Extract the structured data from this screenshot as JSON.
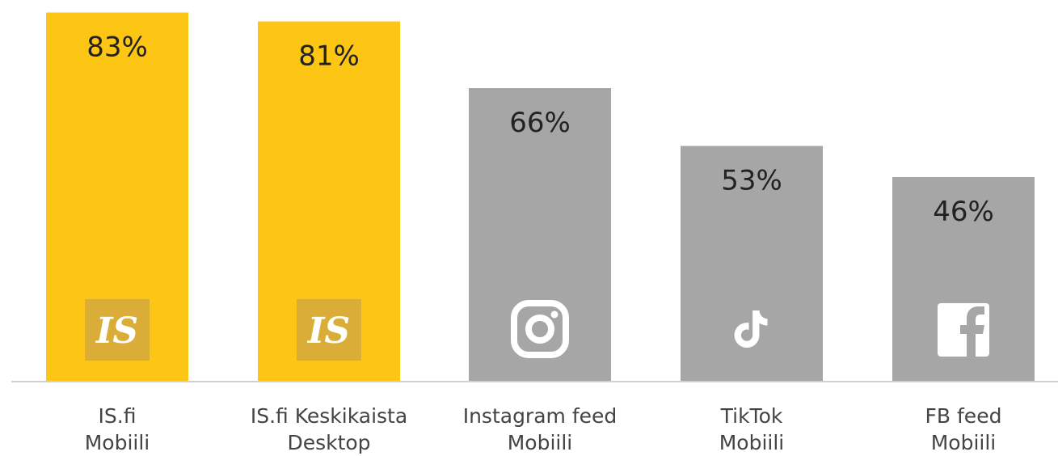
{
  "chart_data": {
    "type": "bar",
    "categories": [
      {
        "line1": "IS.fi",
        "line2": "Mobiili"
      },
      {
        "line1": "IS.fi Keskikaista",
        "line2": "Desktop"
      },
      {
        "line1": "Instagram feed",
        "line2": "Mobiili"
      },
      {
        "line1": "TikTok",
        "line2": "Mobiili"
      },
      {
        "line1": "FB feed",
        "line2": "Mobiili"
      }
    ],
    "values": [
      83,
      81,
      66,
      53,
      46
    ],
    "value_labels": [
      "83%",
      "81%",
      "66%",
      "53%",
      "46%"
    ],
    "bar_colors": [
      "#fdc514",
      "#fdc514",
      "#a6a6a6",
      "#a6a6a6",
      "#a6a6a6"
    ],
    "icons": [
      "is-logo-icon",
      "is-logo-icon",
      "instagram-icon",
      "tiktok-icon",
      "facebook-icon"
    ],
    "icon_text": [
      "IS",
      "IS",
      "",
      "",
      ""
    ],
    "ylim": [
      0,
      100
    ],
    "grid": false,
    "legend": "none",
    "title": "",
    "xlabel": "",
    "ylabel": ""
  }
}
